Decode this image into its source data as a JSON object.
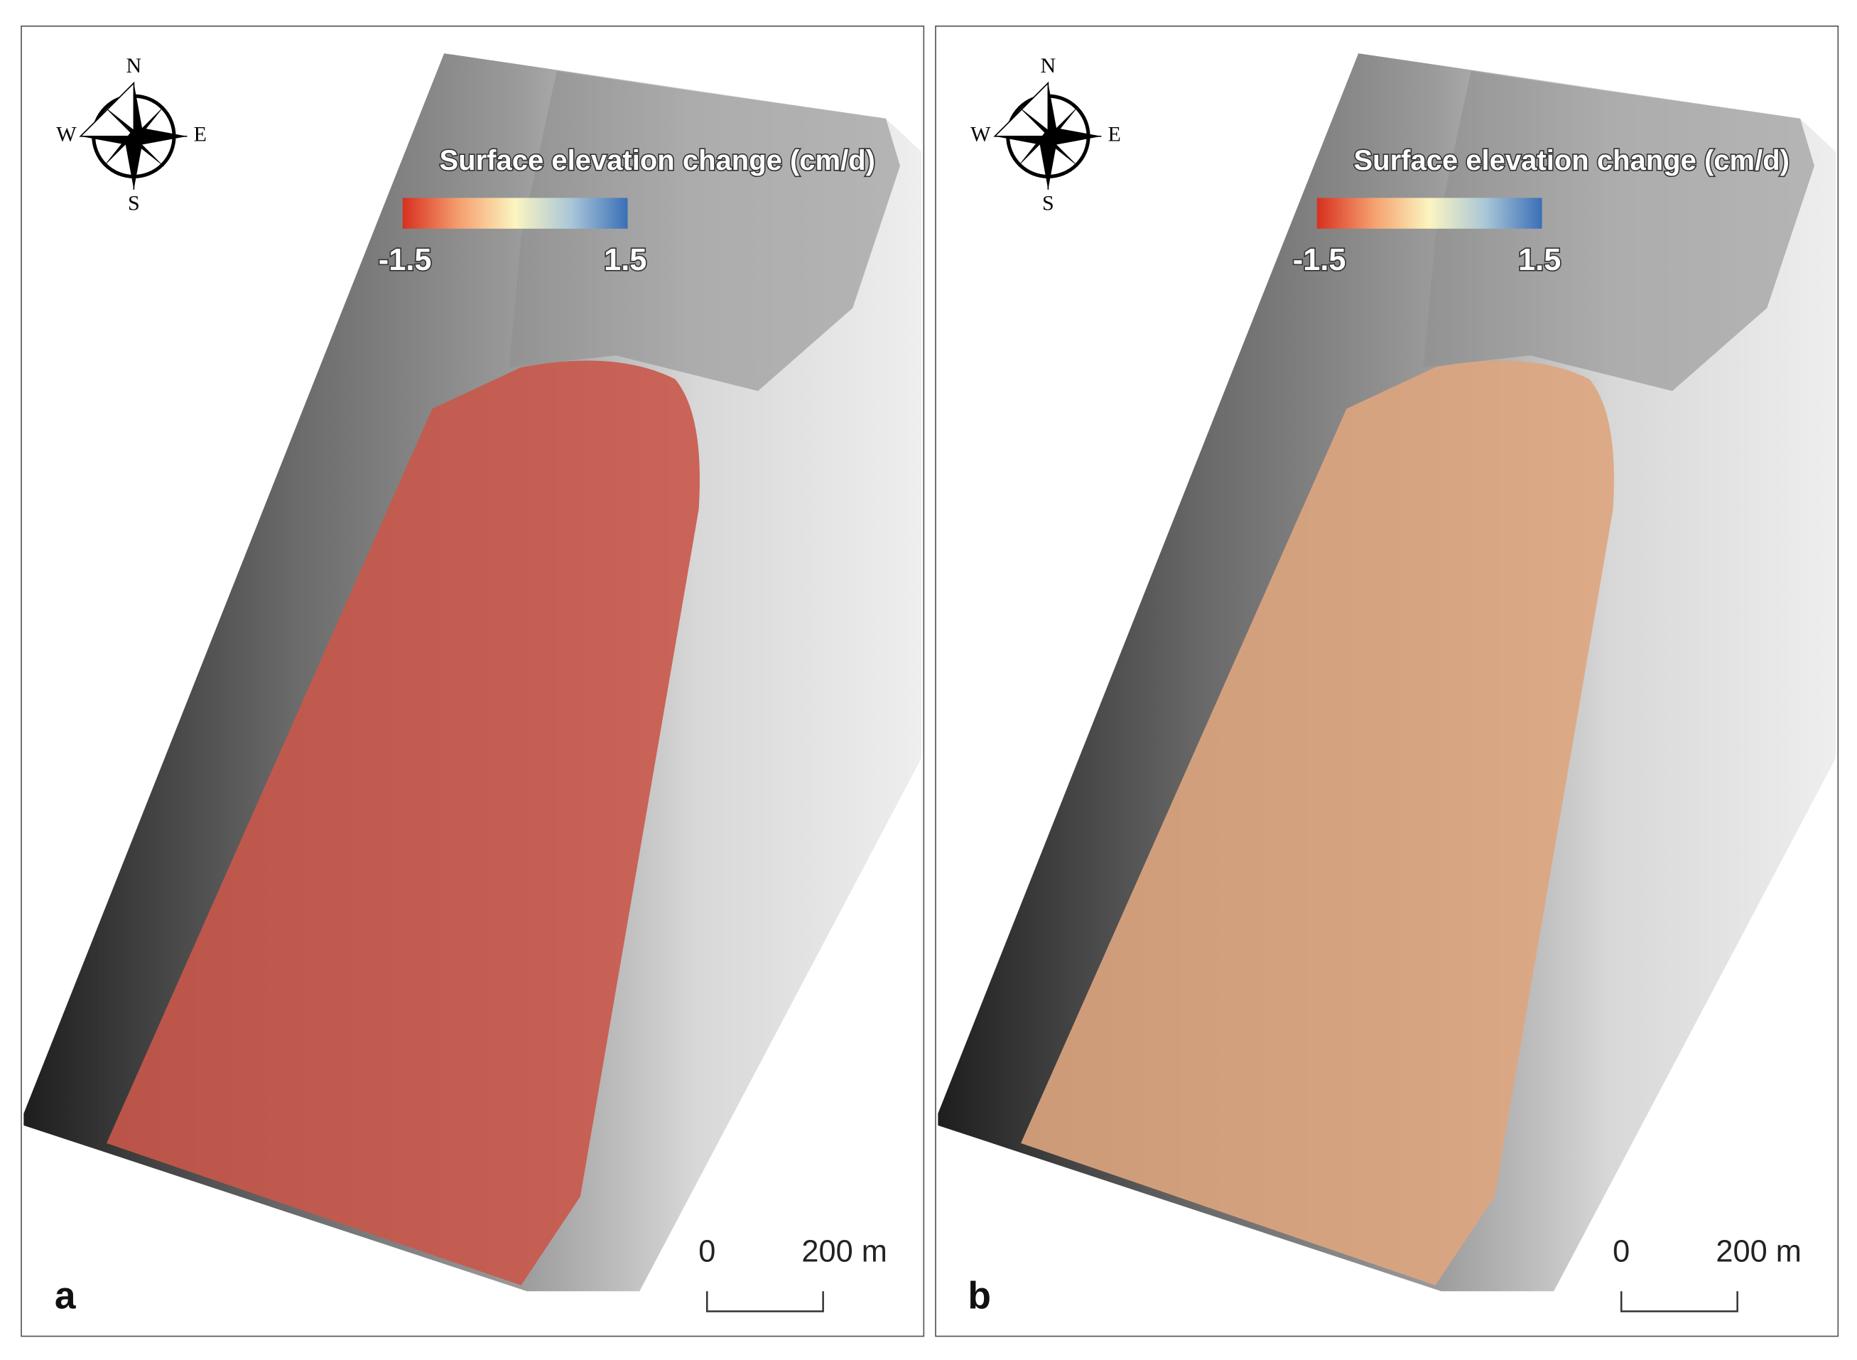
{
  "panels": [
    {
      "label": "a",
      "compass": {
        "n": "N",
        "s": "S",
        "w": "W",
        "e": "E"
      },
      "legend": {
        "title": "Surface elevation change (cm/d)",
        "min": "-1.5",
        "max": "1.5"
      },
      "scale_bar": {
        "start": "0",
        "end": "200 m"
      }
    },
    {
      "label": "b",
      "compass": {
        "n": "N",
        "s": "S",
        "w": "W",
        "e": "E"
      },
      "legend": {
        "title": "Surface elevation change (cm/d)",
        "min": "-1.5",
        "max": "1.5"
      },
      "scale_bar": {
        "start": "0",
        "end": "200 m"
      }
    }
  ]
}
